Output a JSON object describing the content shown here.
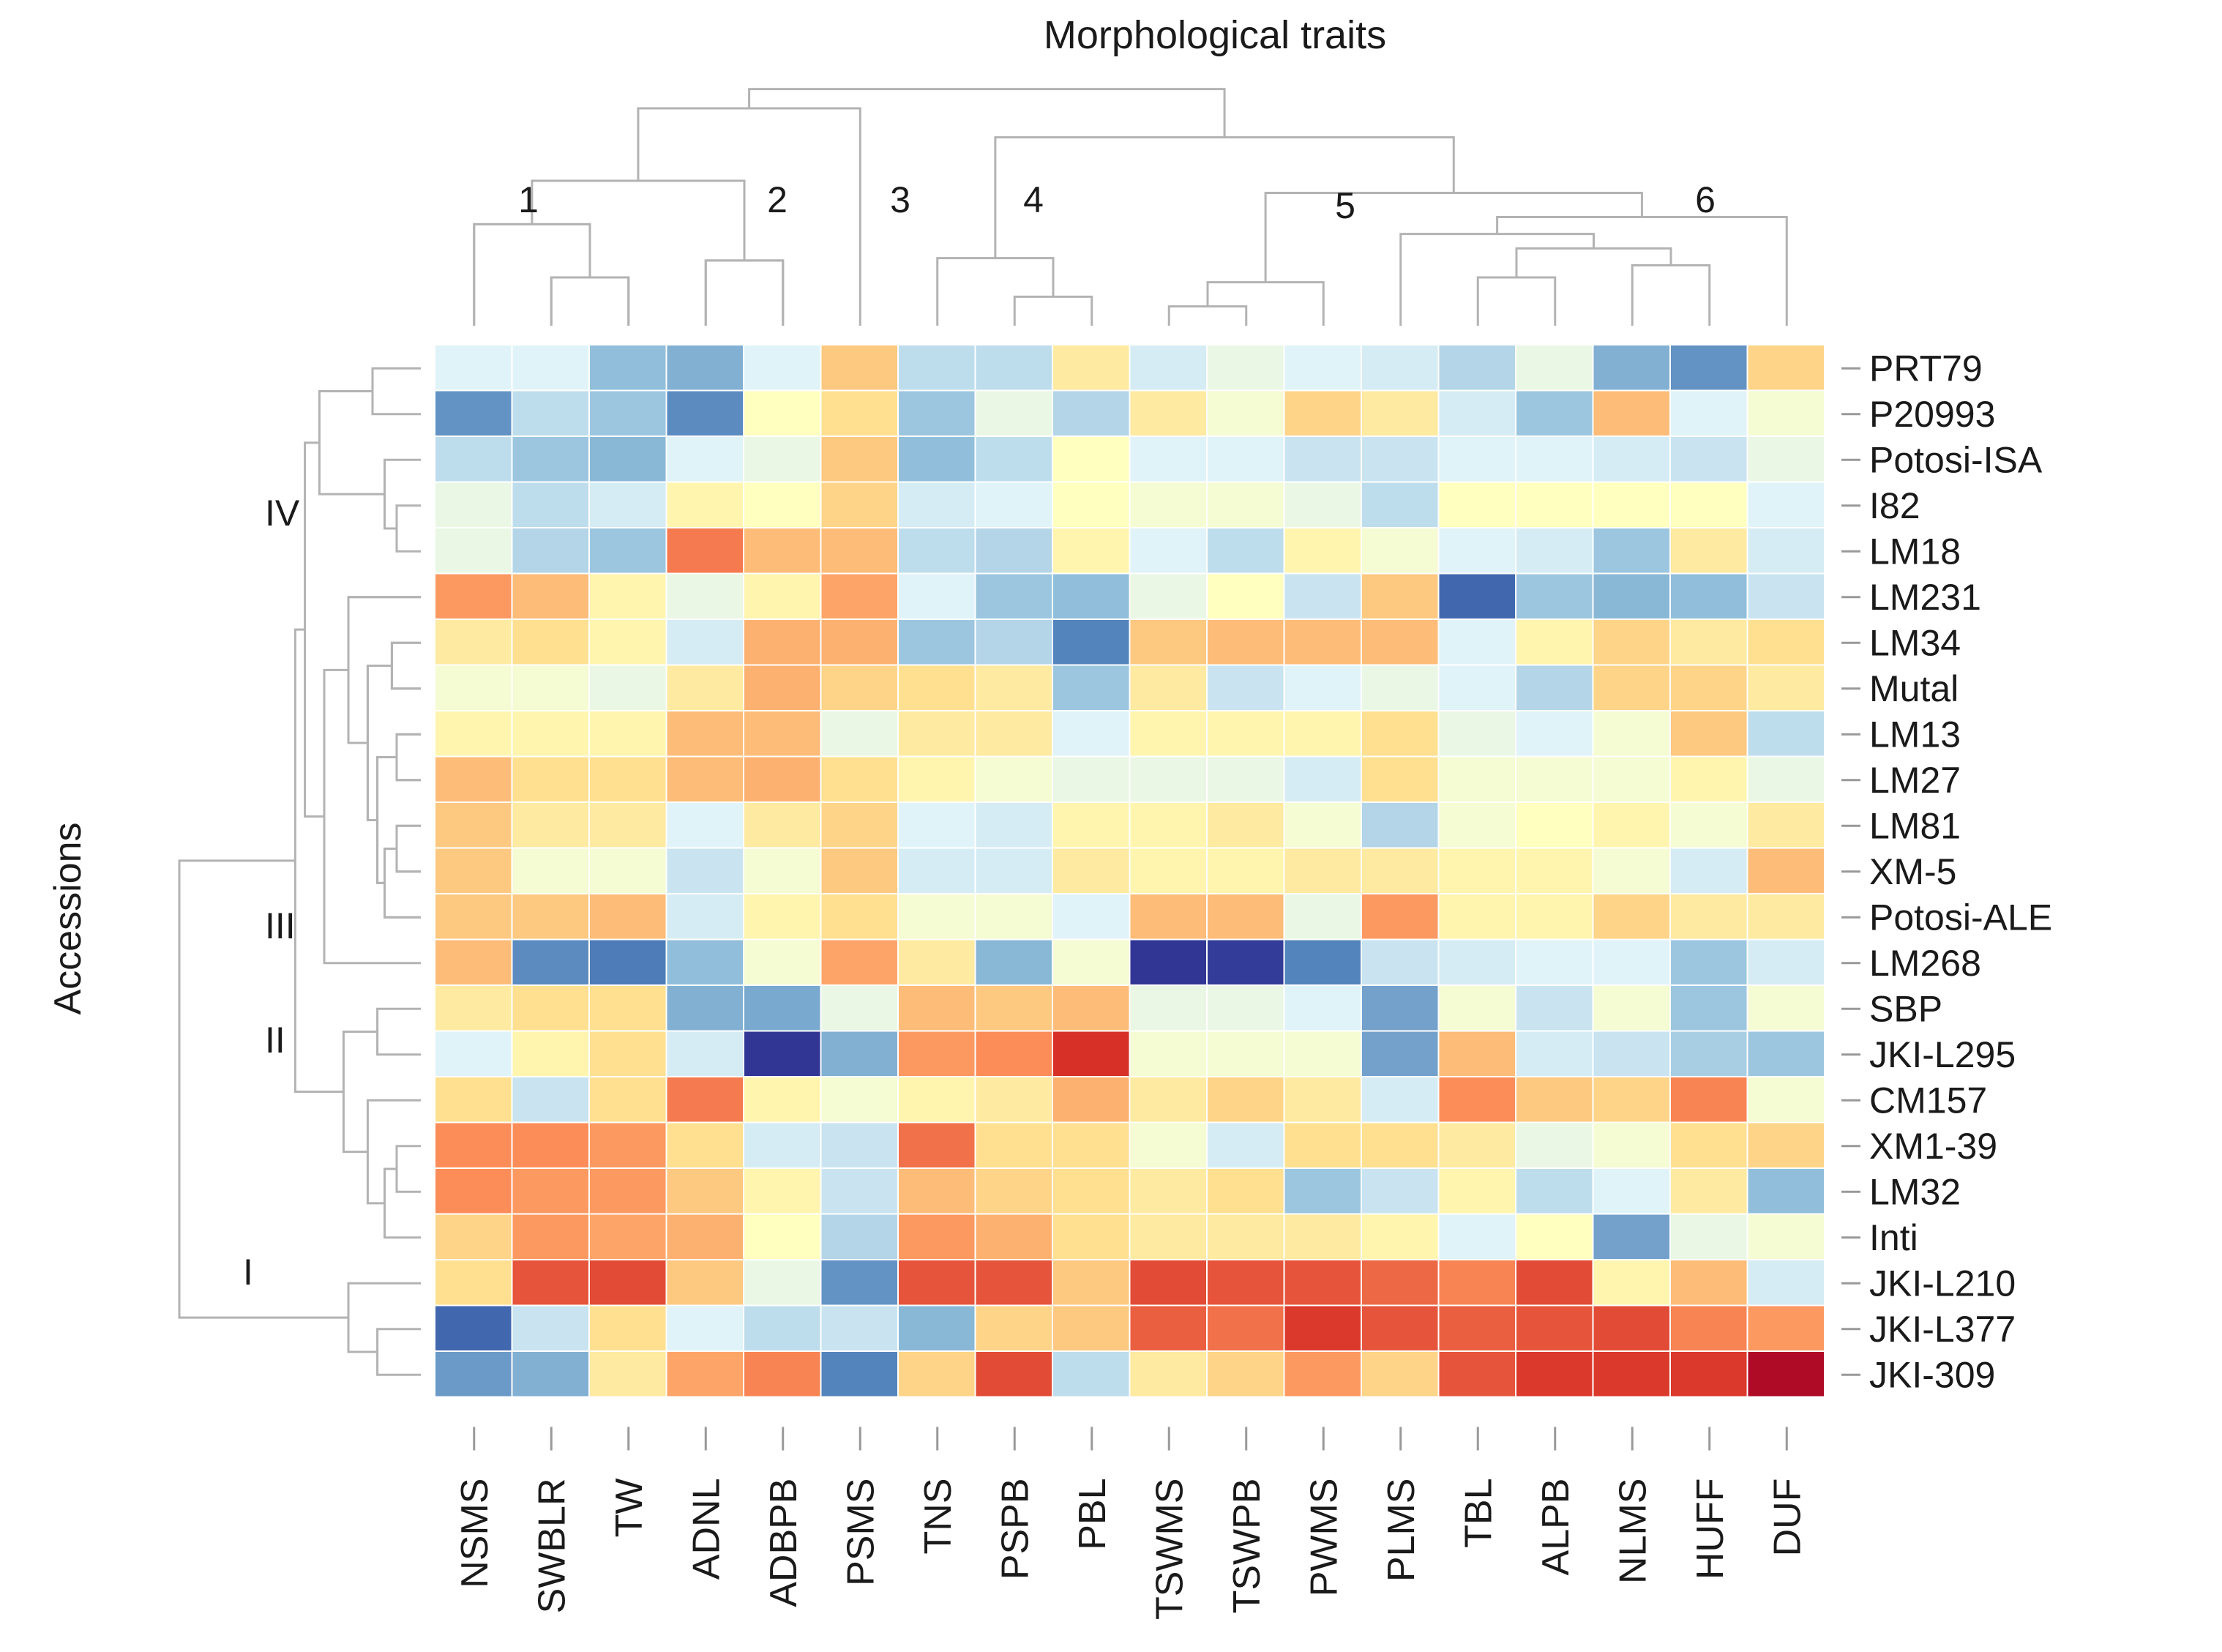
{
  "chart_data": {
    "type": "heatmap",
    "title": "Morphological traits",
    "xlabel": "",
    "ylabel": "Accessions",
    "columns": [
      "NSMS",
      "SWBLR",
      "TW",
      "ADNL",
      "ADBPB",
      "PSMS",
      "TNS",
      "PSPB",
      "PBL",
      "TSWMS",
      "TSWPB",
      "PWMS",
      "PLMS",
      "TBL",
      "ALPB",
      "NLMS",
      "HUFF",
      "DUF"
    ],
    "rows": [
      "PRT79",
      "P20993",
      "Potosi-ISA",
      "I82",
      "LM18",
      "LM231",
      "LM34",
      "Mutal",
      "LM13",
      "LM27",
      "LM81",
      "XM-5",
      "Potosi-ALE",
      "LM268",
      "SBP",
      "JKI-L295",
      "CM157",
      "XM1-39",
      "LM32",
      "Inti",
      "JKI-L210",
      "JKI-L377",
      "JKI-309"
    ],
    "value_range": [
      -3,
      3
    ],
    "color_scale": {
      "low": "#313695",
      "mid": "#ffffbf",
      "high": "#a50026"
    },
    "values": [
      [
        -0.3,
        -0.3,
        -1.0,
        -1.2,
        -0.3,
        0.5,
        -0.6,
        -0.6,
        0.2,
        -0.4,
        -0.2,
        -0.3,
        -0.4,
        -0.7,
        -0.2,
        -1.2,
        -1.6,
        0.4
      ],
      [
        -1.6,
        -0.6,
        -0.9,
        -1.7,
        0.0,
        0.3,
        -0.9,
        -0.2,
        -0.7,
        0.2,
        -0.1,
        0.4,
        0.2,
        -0.4,
        -0.9,
        0.6,
        -0.3,
        -0.1
      ],
      [
        -0.6,
        -0.9,
        -1.1,
        -0.3,
        -0.2,
        0.5,
        -1.0,
        -0.6,
        0.0,
        -0.3,
        -0.3,
        -0.5,
        -0.5,
        -0.3,
        -0.3,
        -0.4,
        -0.5,
        -0.2
      ],
      [
        -0.2,
        -0.6,
        -0.4,
        0.1,
        0.0,
        0.4,
        -0.4,
        -0.3,
        0.0,
        -0.1,
        -0.1,
        -0.2,
        -0.6,
        0.0,
        0.0,
        0.0,
        0.0,
        -0.3
      ],
      [
        -0.2,
        -0.7,
        -0.9,
        1.2,
        0.6,
        0.6,
        -0.6,
        -0.7,
        0.1,
        -0.3,
        -0.6,
        0.1,
        -0.1,
        -0.3,
        -0.4,
        -0.9,
        0.2,
        -0.4
      ],
      [
        0.9,
        0.6,
        0.1,
        -0.2,
        0.1,
        0.8,
        -0.3,
        -0.9,
        -1.0,
        -0.2,
        0.0,
        -0.5,
        0.5,
        -2.2,
        -0.9,
        -1.1,
        -1.0,
        -0.5
      ],
      [
        0.2,
        0.3,
        0.1,
        -0.4,
        0.7,
        0.7,
        -0.9,
        -0.7,
        -1.8,
        0.5,
        0.6,
        0.6,
        0.6,
        -0.3,
        0.1,
        0.4,
        0.2,
        0.3
      ],
      [
        -0.1,
        -0.1,
        -0.2,
        0.2,
        0.7,
        0.4,
        0.3,
        0.2,
        -0.9,
        0.2,
        -0.5,
        -0.3,
        -0.2,
        -0.3,
        -0.7,
        0.4,
        0.4,
        0.2
      ],
      [
        0.1,
        0.1,
        0.1,
        0.6,
        0.6,
        -0.2,
        0.2,
        0.2,
        -0.3,
        0.1,
        0.1,
        0.1,
        0.3,
        -0.2,
        -0.3,
        -0.1,
        0.5,
        -0.6
      ],
      [
        0.6,
        0.3,
        0.3,
        0.6,
        0.7,
        0.3,
        0.1,
        -0.1,
        -0.2,
        -0.2,
        -0.2,
        -0.4,
        0.3,
        -0.1,
        -0.1,
        -0.1,
        0.1,
        -0.2
      ],
      [
        0.5,
        0.2,
        0.2,
        -0.3,
        0.2,
        0.4,
        -0.3,
        -0.4,
        0.1,
        0.1,
        0.2,
        -0.1,
        -0.7,
        -0.1,
        0.0,
        0.1,
        -0.1,
        0.2
      ],
      [
        0.5,
        -0.1,
        -0.1,
        -0.5,
        -0.1,
        0.5,
        -0.4,
        -0.4,
        0.2,
        0.1,
        0.1,
        0.2,
        0.2,
        0.1,
        0.1,
        -0.1,
        -0.4,
        0.6
      ],
      [
        0.5,
        0.5,
        0.6,
        -0.4,
        0.1,
        0.3,
        -0.1,
        -0.1,
        -0.3,
        0.6,
        0.6,
        -0.2,
        0.9,
        0.1,
        0.1,
        0.4,
        0.2,
        0.2
      ],
      [
        0.6,
        -1.7,
        -1.9,
        -1.0,
        -0.1,
        0.8,
        0.2,
        -1.1,
        -0.1,
        -3.0,
        -2.9,
        -1.8,
        -0.5,
        -0.4,
        -0.3,
        -0.3,
        -0.9,
        -0.4
      ],
      [
        0.2,
        0.3,
        0.3,
        -1.2,
        -1.3,
        -0.2,
        0.6,
        0.5,
        0.6,
        -0.2,
        -0.2,
        -0.3,
        -1.4,
        -0.1,
        -0.5,
        -0.1,
        -0.9,
        -0.1
      ],
      [
        -0.3,
        0.1,
        0.3,
        -0.4,
        -3.0,
        -1.2,
        0.9,
        1.0,
        2.0,
        -0.1,
        -0.1,
        -0.1,
        -1.4,
        0.6,
        -0.4,
        -0.5,
        -0.8,
        -0.9
      ],
      [
        0.3,
        -0.5,
        0.3,
        1.2,
        0.1,
        -0.1,
        0.1,
        0.2,
        0.7,
        0.2,
        0.4,
        0.2,
        -0.4,
        1.0,
        0.5,
        0.4,
        1.1,
        -0.1
      ],
      [
        1.0,
        1.0,
        0.9,
        0.3,
        -0.4,
        -0.5,
        1.3,
        0.3,
        0.3,
        -0.1,
        -0.4,
        0.3,
        0.3,
        0.2,
        -0.2,
        -0.1,
        0.3,
        0.4
      ],
      [
        1.0,
        0.9,
        0.9,
        0.5,
        0.1,
        -0.5,
        0.6,
        0.4,
        0.3,
        0.2,
        0.3,
        -0.9,
        -0.5,
        0.1,
        -0.6,
        -0.3,
        0.2,
        -1.0
      ],
      [
        0.4,
        0.9,
        0.8,
        0.7,
        0.0,
        -0.7,
        0.9,
        0.7,
        0.3,
        0.2,
        0.2,
        0.2,
        0.1,
        -0.3,
        0.0,
        -1.4,
        -0.2,
        -0.1
      ],
      [
        0.3,
        1.6,
        1.7,
        0.5,
        -0.2,
        -1.6,
        1.6,
        1.6,
        0.5,
        1.7,
        1.6,
        1.6,
        1.4,
        1.1,
        1.7,
        0.1,
        0.6,
        -0.4
      ],
      [
        -2.2,
        -0.5,
        0.3,
        -0.3,
        -0.6,
        -0.5,
        -1.1,
        0.4,
        0.5,
        1.5,
        1.3,
        1.9,
        1.6,
        1.5,
        1.6,
        1.7,
        1.1,
        0.9
      ],
      [
        -1.5,
        -1.2,
        0.2,
        0.8,
        1.1,
        -1.8,
        0.4,
        1.7,
        -0.6,
        0.2,
        0.4,
        0.9,
        0.4,
        1.6,
        1.9,
        1.9,
        1.9,
        2.8
      ]
    ],
    "row_cluster_labels": [
      "IV",
      "III",
      "II",
      "I"
    ],
    "col_cluster_labels": [
      "1",
      "2",
      "3",
      "4",
      "5",
      "6"
    ]
  }
}
